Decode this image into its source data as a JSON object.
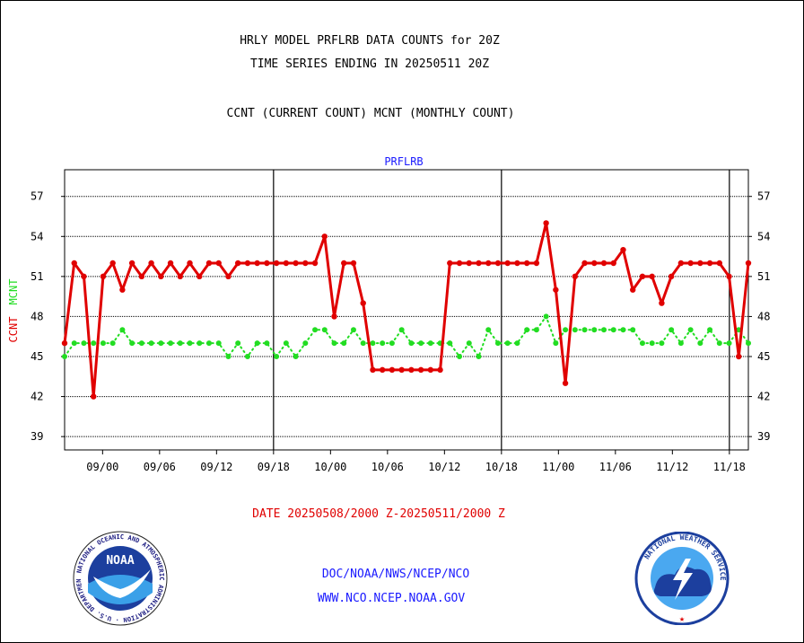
{
  "header": {
    "title_line1": "HRLY MODEL PRFLRB DATA COUNTS for 20Z",
    "title_line2": "TIME SERIES ENDING IN 20250511 20Z",
    "subtitle": "CCNT (CURRENT COUNT) MCNT (MONTHLY COUNT)"
  },
  "footer": {
    "date_range": "DATE 20250508/2000 Z-20250511/2000 Z",
    "org_line": "DOC/NOAA/NWS/NCEP/NCO",
    "url": "WWW.NCO.NCEP.NOAA.GOV"
  },
  "logos": {
    "noaa_text": "NOAA",
    "noaa_ring": "NATIONAL OCEANIC AND ATMOSPHERIC ADMINISTRATION · U.S. DEPARTMENT OF COMMERCE",
    "nws_ring": "NATIONAL WEATHER SERVICE"
  },
  "colors": {
    "ccnt": "#e00000",
    "mcnt": "#22dd22",
    "label_blue": "#1a1aff"
  },
  "chart_data": {
    "type": "line",
    "title": "PRFLRB",
    "ylabel_series": [
      "CCNT",
      "MCNT"
    ],
    "ylim": [
      38,
      59
    ],
    "yticks": [
      39,
      42,
      45,
      48,
      51,
      54,
      57
    ],
    "grid": "horizontal dashed at y ticks",
    "x_tick_labels": [
      "09/00",
      "09/06",
      "09/12",
      "09/18",
      "10/00",
      "10/06",
      "10/12",
      "10/18",
      "11/00",
      "11/06",
      "11/12",
      "11/18"
    ],
    "x_tick_hours": [
      4,
      10,
      16,
      22,
      28,
      34,
      40,
      46,
      52,
      58,
      64,
      70
    ],
    "day_boundaries_hours": [
      22,
      46,
      70
    ],
    "x_range_hours": [
      0,
      72
    ],
    "series": [
      {
        "name": "CCNT",
        "color": "#e00000",
        "values": [
          46,
          52,
          51,
          42,
          51,
          52,
          50,
          52,
          51,
          52,
          51,
          52,
          51,
          52,
          51,
          52,
          52,
          51,
          52,
          52,
          52,
          52,
          52,
          52,
          52,
          52,
          52,
          54,
          48,
          52,
          52,
          49,
          44,
          44,
          44,
          44,
          44,
          44,
          44,
          44,
          52,
          52,
          52,
          52,
          52,
          52,
          52,
          52,
          52,
          52,
          55,
          50,
          43,
          51,
          52,
          52,
          52,
          52,
          53,
          50,
          51,
          51,
          49,
          51,
          52,
          52,
          52,
          52,
          52,
          51,
          45,
          52
        ]
      },
      {
        "name": "MCNT",
        "color": "#22dd22",
        "values": [
          45,
          46,
          46,
          46,
          46,
          46,
          47,
          46,
          46,
          46,
          46,
          46,
          46,
          46,
          46,
          46,
          46,
          45,
          46,
          45,
          46,
          46,
          45,
          46,
          45,
          46,
          47,
          47,
          46,
          46,
          47,
          46,
          46,
          46,
          46,
          47,
          46,
          46,
          46,
          46,
          46,
          45,
          46,
          45,
          47,
          46,
          46,
          46,
          47,
          47,
          48,
          46,
          47,
          47,
          47,
          47,
          47,
          47,
          47,
          47,
          46,
          46,
          46,
          47,
          46,
          47,
          46,
          47,
          46,
          46,
          47,
          46
        ]
      }
    ]
  }
}
